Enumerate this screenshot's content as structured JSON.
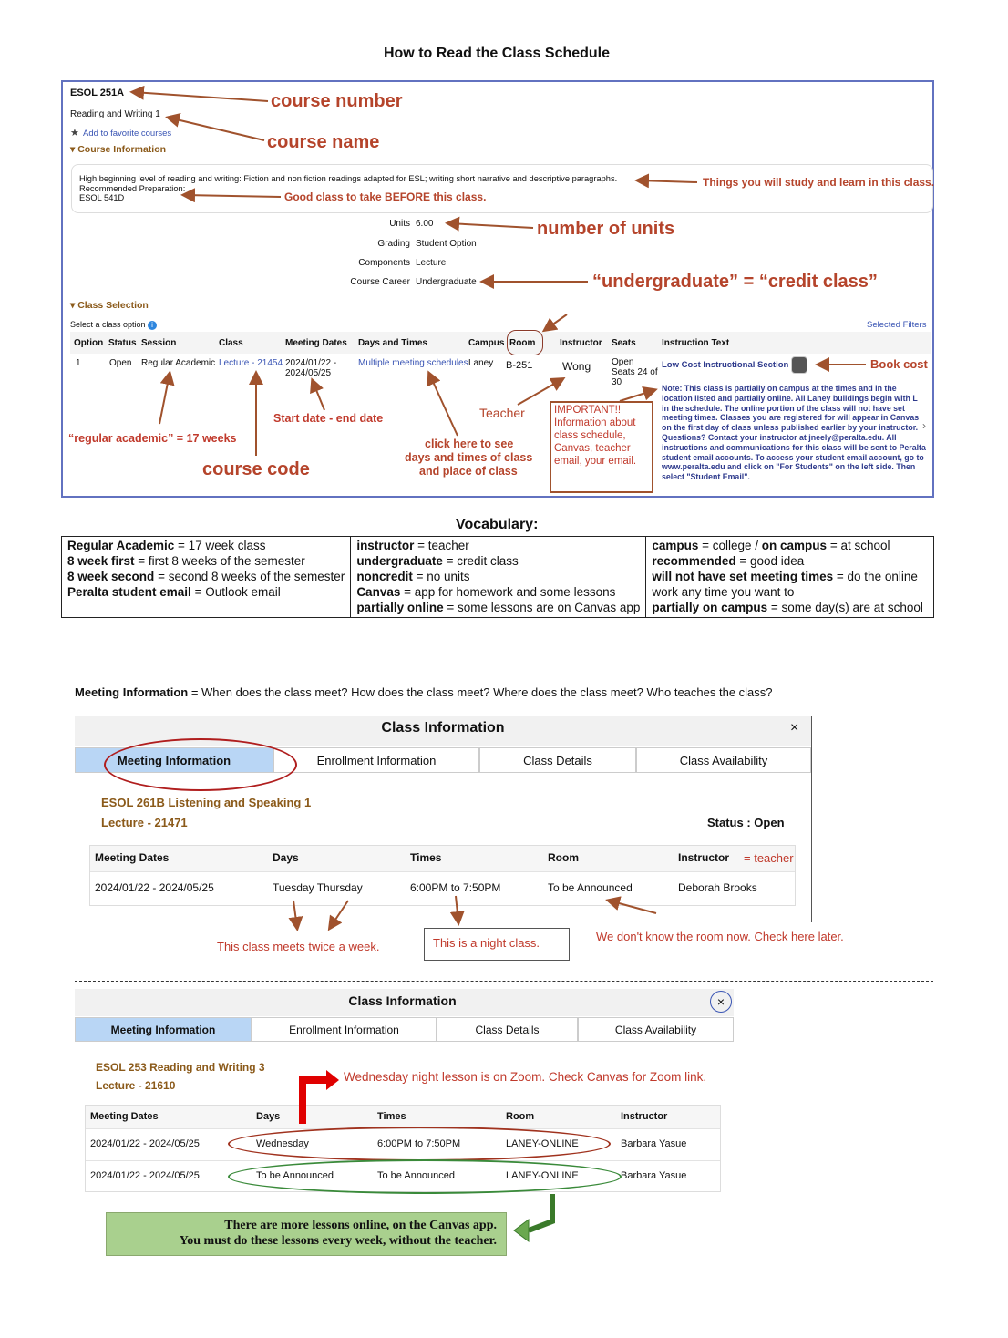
{
  "title": "How to Read the Class Schedule",
  "course": {
    "number": "ESOL 251A",
    "name": "Reading and Writing 1",
    "favorite": "Add to favorite courses",
    "course_info_heading": "Course Information",
    "description": "High beginning level of reading and writing: Fiction and non fiction readings adapted for ESL; writing short narrative and descriptive paragraphs.",
    "recommended_label": "Recommended Preparation:",
    "recommended_value": "ESOL 541D",
    "details": [
      {
        "label": "Units",
        "value": "6.00"
      },
      {
        "label": "Grading",
        "value": "Student Option"
      },
      {
        "label": "Components",
        "value": "Lecture"
      },
      {
        "label": "Course Career",
        "value": "Undergraduate"
      }
    ],
    "class_selection_heading": "Class Selection",
    "select_option": "Select a class option",
    "selected_filters": "Selected Filters",
    "headers": [
      "Option",
      "Status",
      "Session",
      "Class",
      "Meeting Dates",
      "Days and Times",
      "Campus",
      "Room",
      "Instructor",
      "Seats",
      "Instruction Text"
    ],
    "row": {
      "option": "1",
      "status": "Open",
      "session": "Regular Academic",
      "class": "Lecture - 21454",
      "dates_1": "2024/01/22 -",
      "dates_2": "2024/05/25",
      "days_times": "Multiple meeting schedules",
      "campus": "Laney",
      "room": "B-251",
      "instructor": "Wong",
      "seats_1": "Open",
      "seats_2": "Seats 24 of",
      "seats_3": "30",
      "instruction_title": "Low Cost Instructional Section",
      "note": "Note: This class is partially on campus at the times and in the location listed and partially online. All Laney buildings begin with L in the schedule. The online portion of the class will not have set meeting times. Classes you are registered for will appear in Canvas on the first day of class unless published earlier by your instructor. Questions? Contact your instructor at jneely@peralta.edu. All instructions and communications for this class will be sent to Peralta student email accounts. To access your student email account, go to www.peralta.edu and click on \"For Students\" on the left side. Then select \"Student Email\"."
    }
  },
  "annotations": {
    "course_number": "course number",
    "course_name": "course name",
    "study": "Things you will study and learn in this class.",
    "before": "Good class to take BEFORE this class.",
    "units": "number of units",
    "undergrad": "“undergraduate” = “credit class”",
    "book_cost": "Book cost",
    "start_end": "Start date - end date",
    "teacher": "Teacher",
    "regular": "“regular academic” = 17 weeks",
    "course_code": "course code",
    "click_1": "click here to see",
    "click_2": "days and times of class",
    "click_3": "and place of class",
    "important": "IMPORTANT!! Information about class schedule, Canvas, teacher email, your email."
  },
  "vocabulary": {
    "title": "Vocabulary:",
    "columns": [
      [
        {
          "term": "Regular Academic",
          "def": " = 17 week class"
        },
        {
          "term": "8 week first",
          "def": " = first 8 weeks of the semester"
        },
        {
          "term": "8 week second",
          "def": " = second 8 weeks of the semester"
        },
        {
          "term": "Peralta student email",
          "def": " = Outlook email"
        }
      ],
      [
        {
          "term": "instructor",
          "def": " = teacher"
        },
        {
          "term": "undergraduate",
          "def": " = credit class"
        },
        {
          "term": "noncredit",
          "def": " = no units"
        },
        {
          "term": "Canvas",
          "def": " = app for homework and some lessons"
        },
        {
          "term": "partially online",
          "def": " = some lessons are on Canvas app"
        }
      ],
      [
        {
          "term": "campus",
          "def": " = college  /  "
        },
        {
          "term": "on campus",
          "def": " = at school"
        },
        {
          "term": "recommended",
          "def": " = good idea"
        },
        {
          "term": "will not have set meeting times",
          "def": " = do the online"
        },
        {
          "term": "",
          "def": "work any time you want to"
        },
        {
          "term": "partially on campus",
          "def": " = some day(s) are at school"
        }
      ]
    ]
  },
  "meeting_intro": {
    "term": "Meeting Information",
    "def": " = When does the class meet? How does the class meet? Where does the class meet? Who teaches the class?"
  },
  "panel1": {
    "title": "Class Information",
    "close": "×",
    "tabs": [
      "Meeting Information",
      "Enrollment Information",
      "Class Details",
      "Class Availability"
    ],
    "course": "ESOL 261B Listening and Speaking 1",
    "section": "Lecture - 21471",
    "status": "Status : Open",
    "headers": [
      "Meeting Dates",
      "Days",
      "Times",
      "Room",
      "Instructor"
    ],
    "row": [
      "2024/01/22 - 2024/05/25",
      "Tuesday Thursday",
      "6:00PM to 7:50PM",
      "To be Announced",
      "Deborah Brooks"
    ],
    "ann_teacher": "= teacher",
    "ann_twice": "This class meets twice a week.",
    "ann_night": "This is a night class.",
    "ann_room": "We don't know the room now. Check here later."
  },
  "panel2": {
    "title": "Class Information",
    "close": "×",
    "tabs": [
      "Meeting Information",
      "Enrollment Information",
      "Class Details",
      "Class Availability"
    ],
    "course": "ESOL 253 Reading and Writing 3",
    "section": "Lecture - 21610",
    "headers": [
      "Meeting Dates",
      "Days",
      "Times",
      "Room",
      "Instructor"
    ],
    "rows": [
      [
        "2024/01/22 - 2024/05/25",
        "Wednesday",
        "6:00PM to 7:50PM",
        "LANEY-ONLINE",
        "Barbara Yasue"
      ],
      [
        "2024/01/22 - 2024/05/25",
        "To be Announced",
        "To be Announced",
        "LANEY-ONLINE",
        "Barbara Yasue"
      ]
    ],
    "ann_zoom": "Wednesday night lesson is on Zoom. Check Canvas for Zoom link.",
    "callout_1": "There are more lessons online, on the Canvas app.",
    "callout_2": "You must do these lessons every week, without the teacher."
  },
  "colors": {
    "annotation": "#c0392b",
    "arrow": "#a0522d",
    "link": "#3a55b4",
    "active_tab": "#b9d6f5",
    "course_heading": "#8b5a1a",
    "callout_bg": "#a9d08e"
  }
}
